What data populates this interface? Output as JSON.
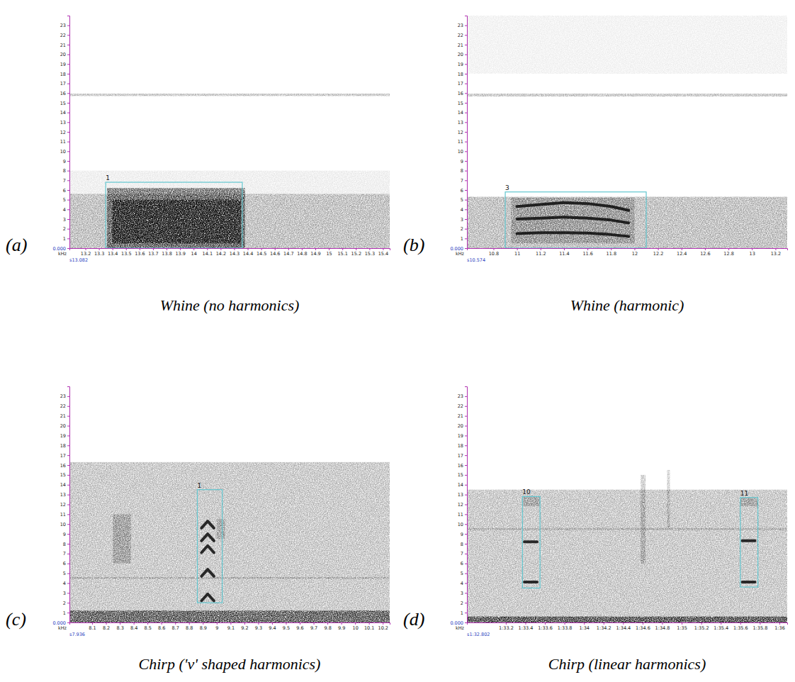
{
  "chart_data": [
    {
      "type": "spectrogram",
      "panel": "(a)",
      "title": "Whine (no harmonics)",
      "ylabel": "kHz",
      "xlim": [
        13.082,
        15.45
      ],
      "ylim": [
        0,
        24
      ],
      "origin_label": {
        "value": 13.082,
        "label": "s13.082"
      },
      "xticks": [
        13.2,
        13.3,
        13.4,
        13.5,
        13.6,
        13.7,
        13.8,
        13.9,
        14,
        14.1,
        14.2,
        14.3,
        14.4,
        14.5,
        14.6,
        14.7,
        14.8,
        14.9,
        15,
        15.1,
        15.2,
        15.3,
        15.4
      ],
      "yticks": [
        {
          "value": 0,
          "label": "0.000"
        },
        1,
        2,
        3,
        4,
        5,
        6,
        7,
        8,
        9,
        10,
        11,
        12,
        13,
        14,
        15,
        16,
        17,
        18,
        19,
        20,
        21,
        22,
        23
      ],
      "regions": [
        {
          "x": [
            13.082,
            15.45
          ],
          "y": [
            0,
            5.6
          ],
          "intensity": 0.4
        },
        {
          "x": [
            13.082,
            15.45
          ],
          "y": [
            5.6,
            8
          ],
          "intensity": 0.1
        },
        {
          "x": [
            13.082,
            15.45
          ],
          "y": [
            15.7,
            15.95
          ],
          "intensity": 0.35
        },
        {
          "x": [
            13.36,
            14.38
          ],
          "y": [
            0,
            6.2
          ],
          "intensity": 0.75
        },
        {
          "x": [
            13.4,
            14.35
          ],
          "y": [
            0.5,
            5
          ],
          "intensity": 0.9
        }
      ],
      "selections": [
        {
          "label": "1",
          "x": [
            13.35,
            14.36
          ],
          "y": [
            0,
            6.8
          ]
        }
      ]
    },
    {
      "type": "spectrogram",
      "panel": "(b)",
      "title": "Whine (harmonic)",
      "ylabel": "kHz",
      "xlim": [
        10.574,
        13.3
      ],
      "ylim": [
        0,
        24
      ],
      "origin_label": {
        "value": 10.574,
        "label": "s10.574"
      },
      "xticks": [
        10.8,
        11,
        11.2,
        11.4,
        11.6,
        11.8,
        12,
        12.2,
        12.4,
        12.6,
        12.8,
        13,
        13.2
      ],
      "yticks": [
        {
          "value": 0,
          "label": "0.000"
        },
        1,
        2,
        3,
        4,
        5,
        6,
        7,
        8,
        9,
        10,
        11,
        12,
        13,
        14,
        15,
        16,
        17,
        18,
        19,
        20,
        21,
        22,
        23
      ],
      "regions": [
        {
          "x": [
            10.574,
            13.3
          ],
          "y": [
            0,
            5.3
          ],
          "intensity": 0.4
        },
        {
          "x": [
            10.574,
            13.3
          ],
          "y": [
            15.65,
            15.95
          ],
          "intensity": 0.35
        },
        {
          "x": [
            10.574,
            13.3
          ],
          "y": [
            18,
            24
          ],
          "intensity": 0.08
        },
        {
          "x": [
            10.95,
            12.0
          ],
          "y": [
            0.5,
            5.2
          ],
          "intensity": 0.35
        }
      ],
      "tracks": [
        {
          "x": [
            11.0,
            11.2,
            11.4,
            11.6,
            11.8,
            11.95
          ],
          "y": [
            1.5,
            1.6,
            1.6,
            1.55,
            1.4,
            1.2
          ]
        },
        {
          "x": [
            11.0,
            11.2,
            11.4,
            11.6,
            11.8,
            11.95
          ],
          "y": [
            3.0,
            3.1,
            3.2,
            3.1,
            2.9,
            2.6
          ]
        },
        {
          "x": [
            11.0,
            11.2,
            11.4,
            11.6,
            11.8,
            11.95
          ],
          "y": [
            4.3,
            4.5,
            4.7,
            4.6,
            4.3,
            3.9
          ]
        }
      ],
      "selections": [
        {
          "label": "3",
          "x": [
            10.9,
            12.1
          ],
          "y": [
            0,
            5.8
          ]
        }
      ]
    },
    {
      "type": "spectrogram",
      "panel": "(c)",
      "title": "Chirp ('v' shaped harmonics)",
      "ylabel": "kHz",
      "xlim": [
        7.936,
        10.25
      ],
      "ylim": [
        0,
        24
      ],
      "origin_label": {
        "value": 7.936,
        "label": "s7.936"
      },
      "xticks": [
        8.1,
        8.2,
        8.3,
        8.4,
        8.5,
        8.6,
        8.7,
        8.8,
        8.9,
        9,
        9.1,
        9.2,
        9.3,
        9.4,
        9.5,
        9.6,
        9.7,
        9.8,
        9.9,
        10,
        10.1,
        10.2
      ],
      "yticks": [
        {
          "value": 0,
          "label": "0.000"
        },
        1,
        2,
        3,
        4,
        5,
        6,
        7,
        8,
        9,
        10,
        11,
        12,
        13,
        14,
        15,
        16,
        17,
        18,
        19,
        20,
        21,
        22,
        23
      ],
      "regions": [
        {
          "x": [
            7.936,
            10.25
          ],
          "y": [
            0,
            16.3
          ],
          "intensity": 0.35
        },
        {
          "x": [
            7.936,
            10.25
          ],
          "y": [
            0,
            1.2
          ],
          "intensity": 0.8
        },
        {
          "x": [
            7.936,
            10.25
          ],
          "y": [
            4.45,
            4.6
          ],
          "intensity": 0.3
        },
        {
          "x": [
            8.25,
            8.38
          ],
          "y": [
            6,
            11
          ],
          "intensity": 0.35
        },
        {
          "x": [
            9.0,
            9.06
          ],
          "y": [
            8.5,
            10.5
          ],
          "intensity": 0.3
        }
      ],
      "tracks": [
        {
          "x": [
            8.89,
            8.935,
            8.98
          ],
          "y": [
            2.2,
            2.9,
            2.2
          ]
        },
        {
          "x": [
            8.89,
            8.935,
            8.98
          ],
          "y": [
            4.7,
            5.4,
            4.7
          ]
        },
        {
          "x": [
            8.89,
            8.935,
            8.98
          ],
          "y": [
            7.1,
            7.8,
            7.1
          ]
        },
        {
          "x": [
            8.89,
            8.935,
            8.98
          ],
          "y": [
            8.3,
            9.0,
            8.3
          ]
        },
        {
          "x": [
            8.89,
            8.935,
            8.98
          ],
          "y": [
            9.6,
            10.3,
            9.6
          ]
        }
      ],
      "selections": [
        {
          "label": "1",
          "x": [
            8.86,
            9.04
          ],
          "y": [
            2,
            13.5
          ]
        }
      ]
    },
    {
      "type": "spectrogram",
      "panel": "(d)",
      "title": "Chirp (linear harmonics)",
      "ylabel": "kHz",
      "xlim": [
        92.802,
        96.08
      ],
      "ylim": [
        0,
        24
      ],
      "origin_label": {
        "value": 92.802,
        "label": "s1:32.802"
      },
      "xticks": [
        {
          "value": 93.2,
          "label": "1:33.2"
        },
        {
          "value": 93.4,
          "label": "1:33.4"
        },
        {
          "value": 93.6,
          "label": "1:33.6"
        },
        {
          "value": 93.8,
          "label": "1:33.8"
        },
        {
          "value": 94,
          "label": "1:34"
        },
        {
          "value": 94.2,
          "label": "1:34.2"
        },
        {
          "value": 94.4,
          "label": "1:34.4"
        },
        {
          "value": 94.6,
          "label": "1:34.6"
        },
        {
          "value": 94.8,
          "label": "1:34.8"
        },
        {
          "value": 95,
          "label": "1:35"
        },
        {
          "value": 95.2,
          "label": "1:35.2"
        },
        {
          "value": 95.4,
          "label": "1:35.4"
        },
        {
          "value": 95.6,
          "label": "1:35.6"
        },
        {
          "value": 95.8,
          "label": "1:35.8"
        },
        {
          "value": 96,
          "label": "1:36"
        }
      ],
      "yticks": [
        {
          "value": 0,
          "label": "0.000"
        },
        1,
        2,
        3,
        4,
        5,
        6,
        7,
        8,
        9,
        10,
        11,
        12,
        13,
        14,
        15,
        16,
        17,
        18,
        19,
        20,
        21,
        22,
        23
      ],
      "regions": [
        {
          "x": [
            92.802,
            96.08
          ],
          "y": [
            0,
            13.5
          ],
          "intensity": 0.35
        },
        {
          "x": [
            92.802,
            96.08
          ],
          "y": [
            0,
            0.6
          ],
          "intensity": 0.9
        },
        {
          "x": [
            92.802,
            96.08
          ],
          "y": [
            9.4,
            9.6
          ],
          "intensity": 0.25
        },
        {
          "x": [
            94.58,
            94.63
          ],
          "y": [
            6,
            15
          ],
          "intensity": 0.3
        },
        {
          "x": [
            94.85,
            94.88
          ],
          "y": [
            9.5,
            15.5
          ],
          "intensity": 0.25
        },
        {
          "x": [
            93.37,
            93.55
          ],
          "y": [
            11.8,
            12.8
          ],
          "intensity": 0.3
        },
        {
          "x": [
            95.6,
            95.78
          ],
          "y": [
            11.8,
            12.7
          ],
          "intensity": 0.3
        }
      ],
      "tracks": [
        {
          "x": [
            93.39,
            93.52
          ],
          "y": [
            4.1,
            4.1
          ]
        },
        {
          "x": [
            93.39,
            93.52
          ],
          "y": [
            8.2,
            8.2
          ]
        },
        {
          "x": [
            95.62,
            95.75
          ],
          "y": [
            4.1,
            4.1
          ]
        },
        {
          "x": [
            95.62,
            95.75
          ],
          "y": [
            8.3,
            8.3
          ]
        }
      ],
      "selections": [
        {
          "label": "10",
          "x": [
            93.37,
            93.55
          ],
          "y": [
            3.5,
            12.8
          ]
        },
        {
          "label": "11",
          "x": [
            95.6,
            95.78
          ],
          "y": [
            3.6,
            12.7
          ]
        }
      ]
    }
  ]
}
